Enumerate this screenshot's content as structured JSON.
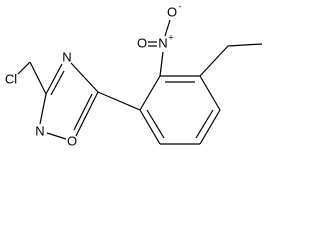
{
  "labels": {
    "chlorine": "Cl",
    "ring_n4": "N",
    "ring_n2": "N",
    "ring_o1": "O",
    "nitro_n": "N",
    "nitro_o_left": "O",
    "nitro_o_top": "O",
    "nitro_n_charge": "+",
    "nitro_o_charge": "-"
  }
}
